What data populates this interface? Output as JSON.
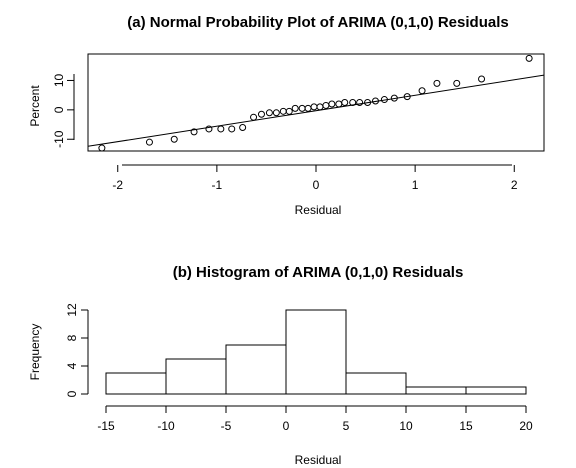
{
  "chart_data": [
    {
      "type": "scatter",
      "title": "(a) Normal Probability Plot of ARIMA (0,1,0) Residuals",
      "xlabel": "Residual",
      "ylabel": "Percent",
      "xlim": [
        -2.3,
        2.3
      ],
      "ylim": [
        -14,
        19
      ],
      "xticks": [
        -2,
        -1,
        0,
        1,
        2
      ],
      "yticks": [
        -10,
        0,
        10
      ],
      "ytick_labels": [
        "-10",
        "0",
        "10"
      ],
      "x": [
        -2.16,
        -1.68,
        -1.43,
        -1.23,
        -1.08,
        -0.96,
        -0.85,
        -0.74,
        -0.63,
        -0.55,
        -0.47,
        -0.4,
        -0.33,
        -0.27,
        -0.21,
        -0.14,
        -0.08,
        -0.02,
        0.04,
        0.1,
        0.16,
        0.23,
        0.29,
        0.37,
        0.44,
        0.52,
        0.6,
        0.69,
        0.79,
        0.92,
        1.07,
        1.22,
        1.42,
        1.67,
        2.15
      ],
      "y": [
        -13,
        -11,
        -10,
        -7.5,
        -6.5,
        -6.5,
        -6.5,
        -6,
        -2.5,
        -1.5,
        -1,
        -1,
        -0.5,
        -0.5,
        0.5,
        0.5,
        0.5,
        1,
        1,
        1.5,
        2,
        2,
        2.5,
        2.5,
        2.5,
        2.5,
        3,
        3.5,
        4,
        4.5,
        6.5,
        9,
        9,
        10.5,
        17.5
      ],
      "reference_line": {
        "x": [
          -2.3,
          2.3
        ],
        "y": [
          -12.4,
          11.8
        ]
      }
    },
    {
      "type": "bar",
      "title": "(b) Histogram of ARIMA (0,1,0) Residuals",
      "xlabel": "Residual",
      "ylabel": "Frequency",
      "bins": [
        {
          "from": -15,
          "to": -10,
          "count": 3
        },
        {
          "from": -10,
          "to": -5,
          "count": 5
        },
        {
          "from": -5,
          "to": 0,
          "count": 7
        },
        {
          "from": 0,
          "to": 5,
          "count": 12
        },
        {
          "from": 5,
          "to": 10,
          "count": 3
        },
        {
          "from": 10,
          "to": 15,
          "count": 1
        },
        {
          "from": 15,
          "to": 20,
          "count": 1
        }
      ],
      "xlim": [
        -15,
        20
      ],
      "ylim": [
        0,
        12
      ],
      "xticks": [
        -15,
        -10,
        -5,
        0,
        5,
        10,
        15,
        20
      ],
      "yticks": [
        0,
        4,
        8,
        12
      ]
    }
  ]
}
